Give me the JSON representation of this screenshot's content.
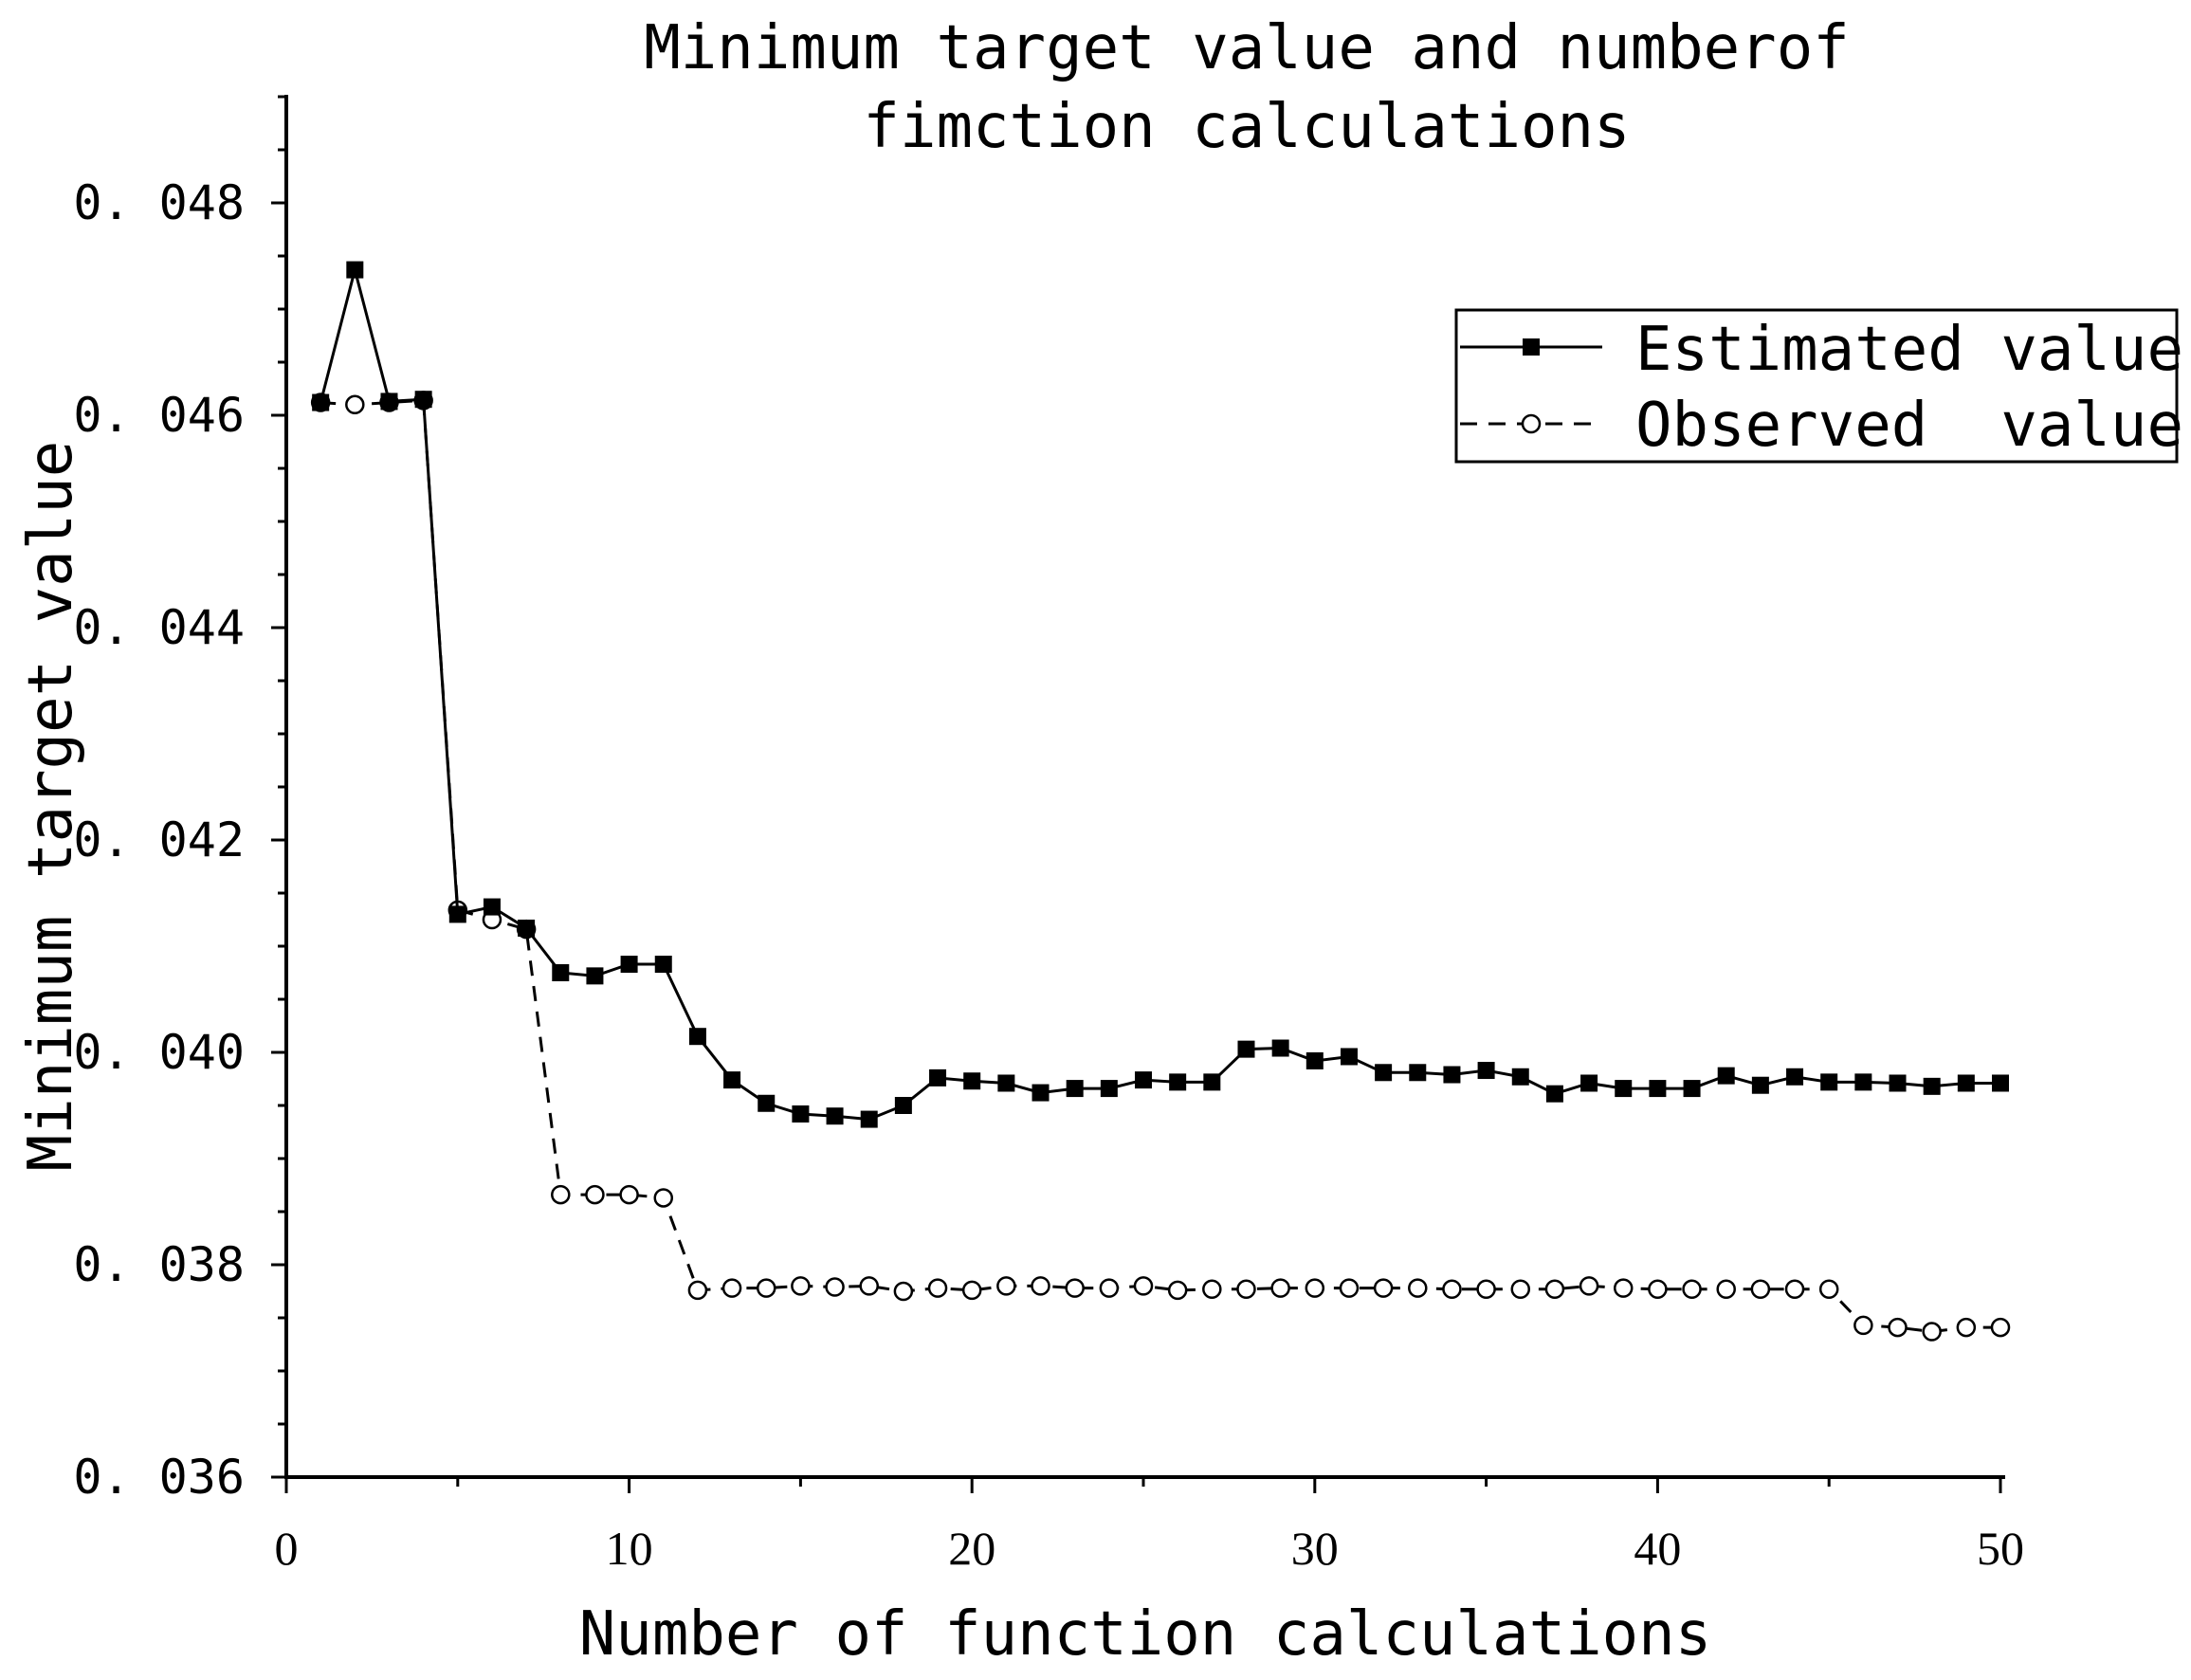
{
  "chart_data": {
    "type": "line",
    "title_lines": [
      "Minimum target value and numberof",
      "fimction calculations"
    ],
    "xlabel": "Number of function calculations",
    "ylabel": "Minimum target value",
    "xlim": [
      0,
      50
    ],
    "ylim": [
      0.036,
      0.049
    ],
    "x_ticks": [
      0,
      10,
      20,
      30,
      40,
      50
    ],
    "x_tick_labels": [
      "0",
      "10",
      "20",
      "30",
      "40",
      "50"
    ],
    "y_ticks": [
      0.036,
      0.038,
      0.04,
      0.042,
      0.044,
      0.046,
      0.048
    ],
    "y_tick_labels": [
      "0.036",
      "0.038",
      "0.040",
      "0.042",
      "0.044",
      "0.046",
      "0.048"
    ],
    "grid": false,
    "legend_position": "top-right",
    "series": [
      {
        "name": "Estimated value",
        "style": "solid",
        "marker": "filled-square",
        "color": "#000000",
        "x": [
          1,
          2,
          3,
          4,
          5,
          6,
          7,
          8,
          9,
          10,
          11,
          12,
          13,
          14,
          15,
          16,
          17,
          18,
          19,
          20,
          21,
          22,
          23,
          24,
          25,
          26,
          27,
          28,
          29,
          30,
          31,
          32,
          33,
          34,
          35,
          36,
          37,
          38,
          39,
          40,
          41,
          42,
          43,
          44,
          45,
          46,
          47,
          48,
          49,
          50
        ],
        "values": [
          0.04612,
          0.04737,
          0.04613,
          0.04615,
          0.0413,
          0.04137,
          0.04117,
          0.04075,
          0.04072,
          0.04083,
          0.04083,
          0.04015,
          0.03974,
          0.03952,
          0.03942,
          0.0394,
          0.03937,
          0.0395,
          0.03976,
          0.03973,
          0.03971,
          0.03962,
          0.03966,
          0.03966,
          0.03974,
          0.03972,
          0.03972,
          0.04003,
          0.04004,
          0.03992,
          0.03996,
          0.03981,
          0.03981,
          0.03979,
          0.03983,
          0.03977,
          0.03961,
          0.03971,
          0.03966,
          0.03966,
          0.03966,
          0.03978,
          0.03969,
          0.03977,
          0.03972,
          0.03972,
          0.03971,
          0.03968,
          0.03971,
          0.03971
        ]
      },
      {
        "name": "Observed  value",
        "style": "dashed",
        "marker": "open-circle",
        "color": "#000000",
        "x": [
          1,
          2,
          3,
          4,
          5,
          6,
          7,
          8,
          9,
          10,
          11,
          12,
          13,
          14,
          15,
          16,
          17,
          18,
          19,
          20,
          21,
          22,
          23,
          24,
          25,
          26,
          27,
          28,
          29,
          30,
          31,
          32,
          33,
          34,
          35,
          36,
          37,
          38,
          39,
          40,
          41,
          42,
          43,
          44,
          45,
          46,
          47,
          48,
          49,
          50
        ],
        "values": [
          0.04612,
          0.0461,
          0.04612,
          0.04614,
          0.04134,
          0.04125,
          0.04116,
          0.03866,
          0.03866,
          0.03866,
          0.03863,
          0.03776,
          0.03778,
          0.03778,
          0.0378,
          0.03779,
          0.0378,
          0.03775,
          0.03778,
          0.03776,
          0.0378,
          0.0378,
          0.03778,
          0.03778,
          0.0378,
          0.03776,
          0.03777,
          0.03777,
          0.03778,
          0.03778,
          0.03778,
          0.03778,
          0.03778,
          0.03777,
          0.03777,
          0.03777,
          0.03777,
          0.0378,
          0.03778,
          0.03777,
          0.03777,
          0.03777,
          0.03777,
          0.03777,
          0.03777,
          0.03743,
          0.03741,
          0.03737,
          0.03741,
          0.03741
        ]
      }
    ]
  }
}
